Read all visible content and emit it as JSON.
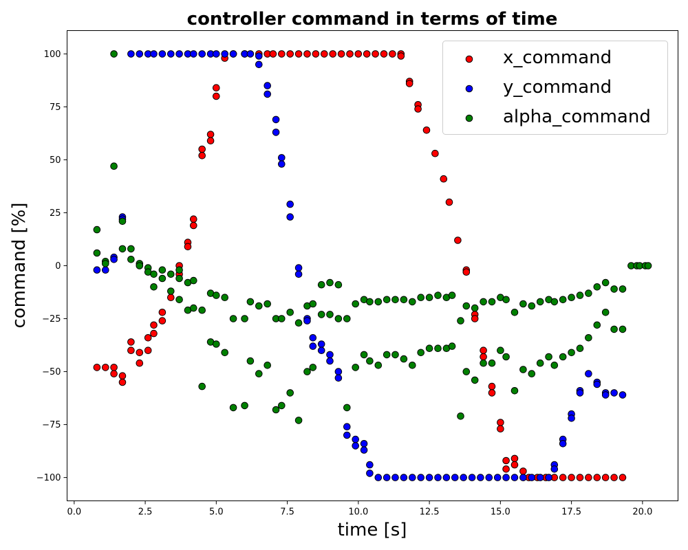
{
  "chart_data": {
    "type": "scatter",
    "title": "controller command in terms of time",
    "xlabel": "time [s]",
    "ylabel": "command [%]",
    "xlim": [
      -0.25,
      21.25
    ],
    "ylim": [
      -111,
      111
    ],
    "xticks": [
      0.0,
      2.5,
      5.0,
      7.5,
      10.0,
      12.5,
      15.0,
      17.5,
      20.0
    ],
    "xtick_labels": [
      "0.0",
      "2.5",
      "5.0",
      "7.5",
      "10.0",
      "12.5",
      "15.0",
      "17.5",
      "20.0"
    ],
    "yticks": [
      100,
      75,
      50,
      25,
      0,
      -25,
      -50,
      -75,
      -100
    ],
    "ytick_labels": [
      "100",
      "75",
      "50",
      "25",
      "0",
      "−25",
      "−50",
      "−75",
      "−100"
    ],
    "grid": false,
    "legend_position": "top-right",
    "series": [
      {
        "name": "x_command",
        "color": "#ff0000",
        "points": [
          [
            0.8,
            -48
          ],
          [
            1.1,
            -48
          ],
          [
            1.4,
            -48
          ],
          [
            1.4,
            -51
          ],
          [
            1.7,
            -52
          ],
          [
            1.7,
            -55
          ],
          [
            2.0,
            -36
          ],
          [
            2.0,
            -40
          ],
          [
            2.3,
            -41
          ],
          [
            2.3,
            -46
          ],
          [
            2.6,
            -34
          ],
          [
            2.6,
            -40
          ],
          [
            2.8,
            -28
          ],
          [
            2.8,
            -32
          ],
          [
            3.1,
            -22
          ],
          [
            3.1,
            -26
          ],
          [
            3.4,
            -15
          ],
          [
            3.7,
            0
          ],
          [
            3.7,
            -4
          ],
          [
            4.0,
            11
          ],
          [
            4.0,
            9
          ],
          [
            4.2,
            22
          ],
          [
            4.2,
            19
          ],
          [
            4.5,
            55
          ],
          [
            4.5,
            52
          ],
          [
            4.8,
            62
          ],
          [
            4.8,
            59
          ],
          [
            5.0,
            84
          ],
          [
            5.0,
            80
          ],
          [
            5.3,
            98
          ],
          [
            5.6,
            100
          ],
          [
            6.0,
            100
          ],
          [
            6.5,
            100
          ],
          [
            6.8,
            100
          ],
          [
            7.0,
            100
          ],
          [
            7.3,
            100
          ],
          [
            7.6,
            100
          ],
          [
            7.9,
            100
          ],
          [
            8.2,
            100
          ],
          [
            8.5,
            100
          ],
          [
            8.8,
            100
          ],
          [
            9.1,
            100
          ],
          [
            9.4,
            100
          ],
          [
            9.7,
            100
          ],
          [
            10.0,
            100
          ],
          [
            10.3,
            100
          ],
          [
            10.6,
            100
          ],
          [
            10.9,
            100
          ],
          [
            11.2,
            100
          ],
          [
            11.5,
            100
          ],
          [
            11.5,
            99
          ],
          [
            11.8,
            87
          ],
          [
            11.8,
            86
          ],
          [
            12.1,
            76
          ],
          [
            12.1,
            74
          ],
          [
            12.4,
            64
          ],
          [
            12.7,
            53
          ],
          [
            13.0,
            41
          ],
          [
            13.2,
            30
          ],
          [
            13.5,
            12
          ],
          [
            13.8,
            -2
          ],
          [
            13.8,
            -3
          ],
          [
            14.1,
            -23
          ],
          [
            14.1,
            -25
          ],
          [
            14.4,
            -40
          ],
          [
            14.4,
            -43
          ],
          [
            14.7,
            -57
          ],
          [
            14.7,
            -60
          ],
          [
            15.0,
            -74
          ],
          [
            15.0,
            -77
          ],
          [
            15.2,
            -92
          ],
          [
            15.2,
            -96
          ],
          [
            15.5,
            -91
          ],
          [
            15.5,
            -94
          ],
          [
            15.8,
            -97
          ],
          [
            16.0,
            -100
          ],
          [
            16.3,
            -100
          ],
          [
            16.6,
            -100
          ],
          [
            16.9,
            -100
          ],
          [
            17.2,
            -100
          ],
          [
            17.5,
            -100
          ],
          [
            17.8,
            -100
          ],
          [
            18.1,
            -100
          ],
          [
            18.4,
            -100
          ],
          [
            18.7,
            -100
          ],
          [
            19.0,
            -100
          ],
          [
            19.3,
            -100
          ]
        ]
      },
      {
        "name": "y_command",
        "color": "#0000ff",
        "points": [
          [
            0.8,
            -2
          ],
          [
            1.1,
            -2
          ],
          [
            1.4,
            4
          ],
          [
            1.4,
            3
          ],
          [
            1.7,
            23
          ],
          [
            1.7,
            22
          ],
          [
            2.0,
            100
          ],
          [
            2.3,
            100
          ],
          [
            2.6,
            100
          ],
          [
            2.8,
            100
          ],
          [
            3.1,
            100
          ],
          [
            3.4,
            100
          ],
          [
            3.7,
            100
          ],
          [
            4.0,
            100
          ],
          [
            4.2,
            100
          ],
          [
            4.5,
            100
          ],
          [
            4.8,
            100
          ],
          [
            5.0,
            100
          ],
          [
            5.3,
            100
          ],
          [
            5.6,
            100
          ],
          [
            6.0,
            100
          ],
          [
            6.2,
            100
          ],
          [
            6.5,
            99
          ],
          [
            6.5,
            95
          ],
          [
            6.8,
            85
          ],
          [
            6.8,
            81
          ],
          [
            7.1,
            69
          ],
          [
            7.1,
            63
          ],
          [
            7.3,
            51
          ],
          [
            7.3,
            48
          ],
          [
            7.6,
            29
          ],
          [
            7.6,
            23
          ],
          [
            7.9,
            -1
          ],
          [
            7.9,
            -4
          ],
          [
            8.2,
            -25
          ],
          [
            8.2,
            -26
          ],
          [
            8.4,
            -34
          ],
          [
            8.4,
            -38
          ],
          [
            8.7,
            -37
          ],
          [
            8.7,
            -40
          ],
          [
            9.0,
            -42
          ],
          [
            9.0,
            -45
          ],
          [
            9.3,
            -50
          ],
          [
            9.3,
            -53
          ],
          [
            9.6,
            -76
          ],
          [
            9.6,
            -80
          ],
          [
            9.9,
            -82
          ],
          [
            9.9,
            -85
          ],
          [
            10.2,
            -84
          ],
          [
            10.2,
            -87
          ],
          [
            10.4,
            -94
          ],
          [
            10.4,
            -98
          ],
          [
            10.7,
            -100
          ],
          [
            11.0,
            -100
          ],
          [
            11.3,
            -100
          ],
          [
            11.6,
            -100
          ],
          [
            11.9,
            -100
          ],
          [
            12.2,
            -100
          ],
          [
            12.5,
            -100
          ],
          [
            12.8,
            -100
          ],
          [
            13.1,
            -100
          ],
          [
            13.4,
            -100
          ],
          [
            13.7,
            -100
          ],
          [
            14.0,
            -100
          ],
          [
            14.3,
            -100
          ],
          [
            14.6,
            -100
          ],
          [
            14.9,
            -100
          ],
          [
            15.2,
            -100
          ],
          [
            15.5,
            -100
          ],
          [
            15.8,
            -100
          ],
          [
            16.1,
            -100
          ],
          [
            16.4,
            -100
          ],
          [
            16.7,
            -100
          ],
          [
            16.9,
            -94
          ],
          [
            16.9,
            -96
          ],
          [
            17.2,
            -82
          ],
          [
            17.2,
            -84
          ],
          [
            17.5,
            -70
          ],
          [
            17.5,
            -72
          ],
          [
            17.8,
            -59
          ],
          [
            17.8,
            -60
          ],
          [
            18.1,
            -51
          ],
          [
            18.4,
            -55
          ],
          [
            18.4,
            -56
          ],
          [
            18.7,
            -60
          ],
          [
            18.7,
            -61
          ],
          [
            19.0,
            -60
          ],
          [
            19.3,
            -61
          ]
        ]
      },
      {
        "name": "alpha_command",
        "color": "#008000",
        "points": [
          [
            0.8,
            17
          ],
          [
            0.8,
            6
          ],
          [
            1.1,
            2
          ],
          [
            1.1,
            1
          ],
          [
            1.4,
            100
          ],
          [
            1.4,
            47
          ],
          [
            1.7,
            21
          ],
          [
            1.7,
            8
          ],
          [
            2.0,
            8
          ],
          [
            2.0,
            3
          ],
          [
            2.3,
            1
          ],
          [
            2.3,
            0
          ],
          [
            2.6,
            -1
          ],
          [
            2.6,
            -3
          ],
          [
            2.8,
            -4
          ],
          [
            2.8,
            -10
          ],
          [
            3.1,
            -2
          ],
          [
            3.1,
            -6
          ],
          [
            3.4,
            -4
          ],
          [
            3.4,
            -12
          ],
          [
            3.7,
            -2
          ],
          [
            3.7,
            -6
          ],
          [
            3.7,
            -16
          ],
          [
            4.0,
            -8
          ],
          [
            4.0,
            -21
          ],
          [
            4.2,
            -7
          ],
          [
            4.2,
            -20
          ],
          [
            4.5,
            -21
          ],
          [
            4.5,
            -57
          ],
          [
            4.8,
            -13
          ],
          [
            4.8,
            -36
          ],
          [
            5.0,
            -14
          ],
          [
            5.0,
            -37
          ],
          [
            5.3,
            -15
          ],
          [
            5.3,
            -41
          ],
          [
            5.6,
            -25
          ],
          [
            5.6,
            -67
          ],
          [
            6.0,
            -25
          ],
          [
            6.0,
            -66
          ],
          [
            6.2,
            -17
          ],
          [
            6.2,
            -45
          ],
          [
            6.5,
            -19
          ],
          [
            6.5,
            -51
          ],
          [
            6.8,
            -18
          ],
          [
            6.8,
            -47
          ],
          [
            7.1,
            -25
          ],
          [
            7.1,
            -68
          ],
          [
            7.3,
            -25
          ],
          [
            7.3,
            -66
          ],
          [
            7.6,
            -22
          ],
          [
            7.6,
            -60
          ],
          [
            7.9,
            -27
          ],
          [
            7.9,
            -73
          ],
          [
            8.2,
            -19
          ],
          [
            8.2,
            -50
          ],
          [
            8.4,
            -18
          ],
          [
            8.4,
            -48
          ],
          [
            8.7,
            -9
          ],
          [
            8.7,
            -23
          ],
          [
            9.0,
            -8
          ],
          [
            9.0,
            -23
          ],
          [
            9.3,
            -9
          ],
          [
            9.3,
            -25
          ],
          [
            9.6,
            -25
          ],
          [
            9.6,
            -67
          ],
          [
            9.9,
            -18
          ],
          [
            9.9,
            -48
          ],
          [
            10.2,
            -16
          ],
          [
            10.2,
            -42
          ],
          [
            10.4,
            -17
          ],
          [
            10.4,
            -45
          ],
          [
            10.7,
            -17
          ],
          [
            10.7,
            -47
          ],
          [
            11.0,
            -16
          ],
          [
            11.0,
            -42
          ],
          [
            11.3,
            -16
          ],
          [
            11.3,
            -42
          ],
          [
            11.6,
            -16
          ],
          [
            11.6,
            -44
          ],
          [
            11.9,
            -17
          ],
          [
            11.9,
            -47
          ],
          [
            12.2,
            -15
          ],
          [
            12.2,
            -41
          ],
          [
            12.5,
            -15
          ],
          [
            12.5,
            -39
          ],
          [
            12.8,
            -14
          ],
          [
            12.8,
            -39
          ],
          [
            13.1,
            -15
          ],
          [
            13.1,
            -39
          ],
          [
            13.3,
            -14
          ],
          [
            13.3,
            -38
          ],
          [
            13.6,
            -26
          ],
          [
            13.6,
            -71
          ],
          [
            13.8,
            -19
          ],
          [
            13.8,
            -50
          ],
          [
            14.1,
            -20
          ],
          [
            14.1,
            -54
          ],
          [
            14.4,
            -17
          ],
          [
            14.4,
            -46
          ],
          [
            14.7,
            -17
          ],
          [
            14.7,
            -46
          ],
          [
            15.0,
            -15
          ],
          [
            15.0,
            -40
          ],
          [
            15.2,
            -16
          ],
          [
            15.2,
            -43
          ],
          [
            15.5,
            -22
          ],
          [
            15.5,
            -59
          ],
          [
            15.8,
            -18
          ],
          [
            15.8,
            -49
          ],
          [
            16.1,
            -19
          ],
          [
            16.1,
            -51
          ],
          [
            16.4,
            -17
          ],
          [
            16.4,
            -46
          ],
          [
            16.7,
            -16
          ],
          [
            16.7,
            -43
          ],
          [
            16.9,
            -17
          ],
          [
            16.9,
            -47
          ],
          [
            17.2,
            -16
          ],
          [
            17.2,
            -43
          ],
          [
            17.5,
            -15
          ],
          [
            17.5,
            -41
          ],
          [
            17.8,
            -14
          ],
          [
            17.8,
            -39
          ],
          [
            18.1,
            -13
          ],
          [
            18.1,
            -34
          ],
          [
            18.4,
            -10
          ],
          [
            18.4,
            -28
          ],
          [
            18.7,
            -8
          ],
          [
            18.7,
            -22
          ],
          [
            19.0,
            -11
          ],
          [
            19.0,
            -30
          ],
          [
            19.3,
            -11
          ],
          [
            19.3,
            -30
          ],
          [
            19.6,
            0
          ],
          [
            19.8,
            0
          ],
          [
            19.9,
            0
          ],
          [
            20.1,
            0
          ],
          [
            20.2,
            0
          ]
        ]
      }
    ]
  }
}
